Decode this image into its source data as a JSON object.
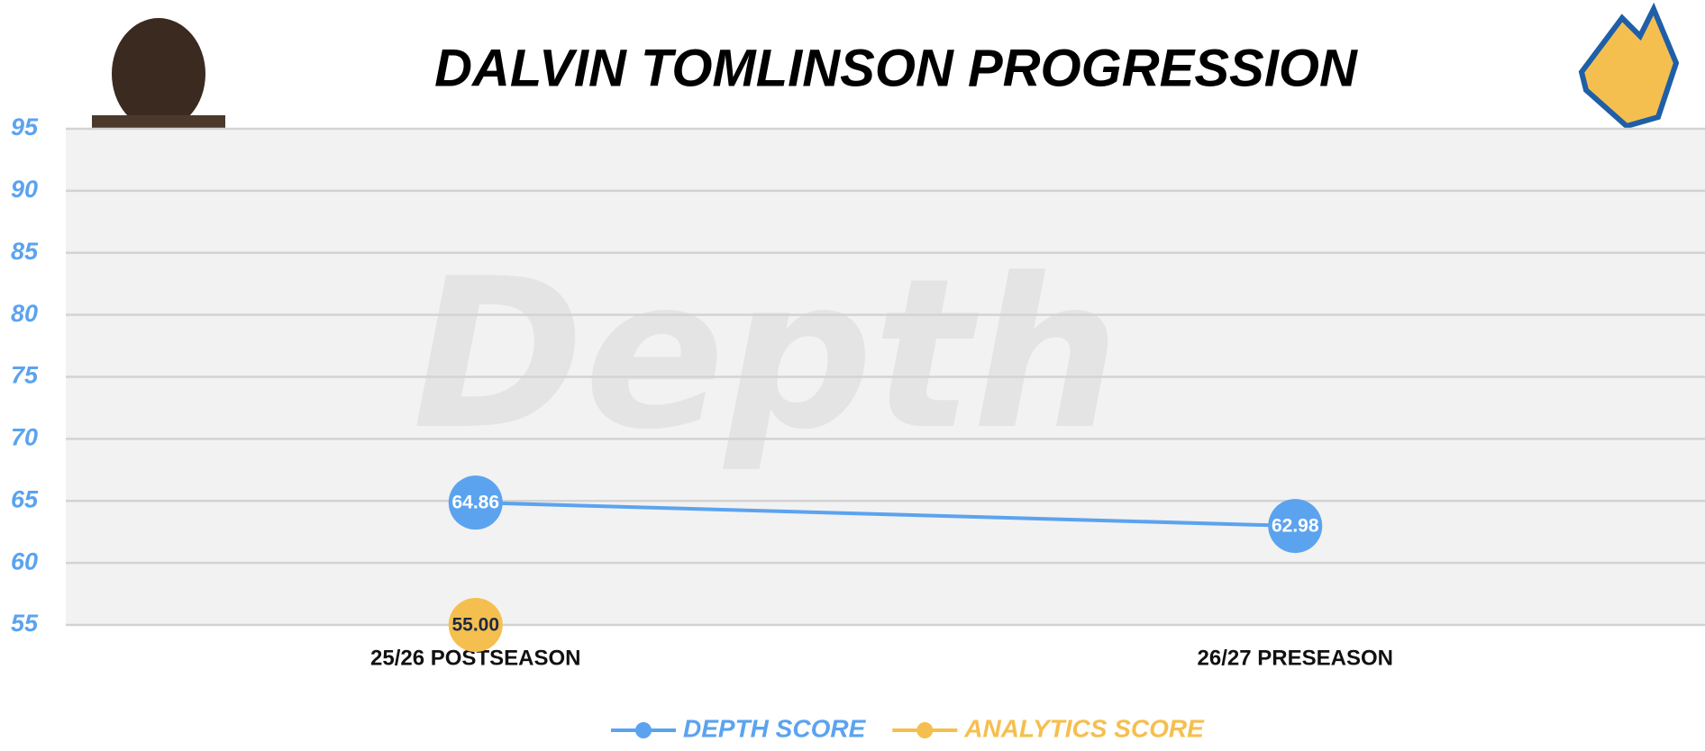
{
  "chart_data": {
    "type": "line",
    "title": "DALVIN TOMLINSON PROGRESSION",
    "watermark": "Depth",
    "categories": [
      "25/26 POSTSEASON",
      "26/27 PRESEASON"
    ],
    "series": [
      {
        "name": "DEPTH SCORE",
        "color": "#5ba3ef",
        "values": [
          64.86,
          62.98
        ]
      },
      {
        "name": "ANALYTICS SCORE",
        "color": "#f5bf4f",
        "values": [
          55,
          null
        ],
        "value_labels": [
          "55.00",
          null
        ]
      }
    ],
    "ylim": [
      55,
      95
    ],
    "yticks": [
      55,
      60,
      65,
      70,
      75,
      80,
      85,
      90,
      95
    ],
    "grid": true,
    "legend": "bottom"
  }
}
